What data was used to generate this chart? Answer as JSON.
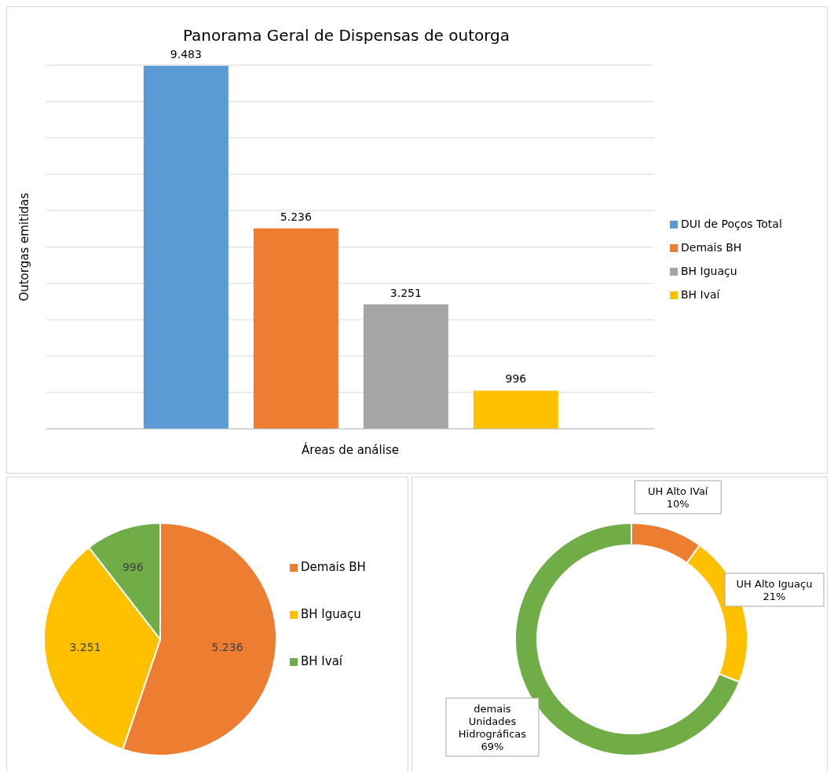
{
  "chart_data": [
    {
      "type": "bar",
      "title": "Panorama Geral de Dispensas de outorga",
      "xlabel": "Áreas de análise",
      "ylabel": "Outorgas emitidas",
      "categories": [
        null
      ],
      "series": [
        {
          "name": "DUI de Poços Total",
          "color": "#5b9bd5",
          "values": [
            9483
          ],
          "value_labels": [
            "9.483"
          ]
        },
        {
          "name": "Demais BH",
          "color": "#ed7d31",
          "values": [
            5236
          ],
          "value_labels": [
            "5.236"
          ]
        },
        {
          "name": "BH Iguaçu",
          "color": "#a5a5a5",
          "values": [
            3251
          ],
          "value_labels": [
            "3.251"
          ]
        },
        {
          "name": "BH Ivaí",
          "color": "#ffc000",
          "values": [
            996
          ],
          "value_labels": [
            "996"
          ]
        }
      ],
      "grid": "y",
      "legend": "right"
    },
    {
      "type": "pie",
      "categories": [
        "Demais BH",
        "BH Iguaçu",
        "BH Ivaí"
      ],
      "values": [
        5236,
        3251,
        996
      ],
      "value_labels": [
        "5.236",
        "3.251",
        "996"
      ],
      "colors": [
        "#ed7d31",
        "#ffc000",
        "#70ad47"
      ],
      "legend": "right"
    },
    {
      "type": "donut",
      "categories": [
        "UH Alto IVaí",
        "UH Alto Iguaçu",
        "demais Unidades Hidrográficas"
      ],
      "values": [
        10,
        21,
        69
      ],
      "value_labels": [
        "10%",
        "21%",
        "69%"
      ],
      "colors": [
        "#ed7d31",
        "#ffc000",
        "#70ad47"
      ],
      "legend": false
    }
  ]
}
